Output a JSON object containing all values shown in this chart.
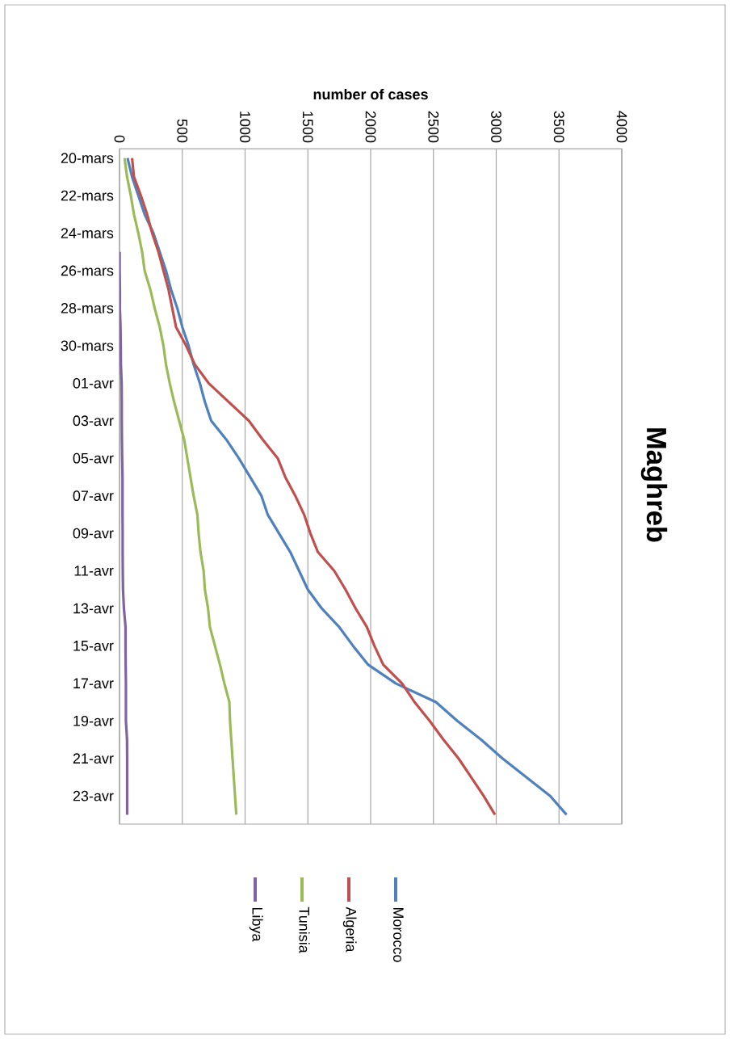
{
  "chart_data": {
    "type": "line",
    "title": "Maghreb",
    "xlabel": "number of cases",
    "orientation": "horizontal",
    "categories": [
      "20-mars",
      null,
      "22-mars",
      null,
      "24-mars",
      null,
      "26-mars",
      null,
      "28-mars",
      null,
      "30-mars",
      null,
      "01-avr",
      null,
      "03-avr",
      null,
      "05-avr",
      null,
      "07-avr",
      null,
      "09-avr",
      null,
      "11-avr",
      null,
      "13-avr",
      null,
      "15-avr",
      null,
      "17-avr",
      null,
      "19-avr",
      null,
      "21-avr",
      null,
      "23-avr",
      null
    ],
    "series": [
      {
        "name": "Morocco",
        "color": "#4f81bd",
        "values": [
          64,
          100,
          150,
          200,
          270,
          320,
          370,
          410,
          460,
          500,
          550,
          590,
          640,
          680,
          730,
          850,
          950,
          1040,
          1130,
          1180,
          1270,
          1360,
          1430,
          1500,
          1610,
          1750,
          1860,
          1980,
          2200,
          2520,
          2690,
          2880,
          3050,
          3240,
          3430,
          3560
        ]
      },
      {
        "name": "Algeria",
        "color": "#c0504d",
        "values": [
          100,
          115,
          170,
          220,
          260,
          310,
          350,
          390,
          420,
          450,
          530,
          600,
          710,
          870,
          1030,
          1140,
          1260,
          1320,
          1400,
          1470,
          1520,
          1580,
          1710,
          1800,
          1880,
          1970,
          2030,
          2100,
          2250,
          2350,
          2470,
          2580,
          2700,
          2800,
          2900,
          2990
        ]
      },
      {
        "name": "Tunisia",
        "color": "#9bbb59",
        "values": [
          40,
          60,
          90,
          115,
          150,
          180,
          200,
          245,
          280,
          320,
          350,
          370,
          400,
          435,
          475,
          515,
          540,
          565,
          590,
          620,
          630,
          645,
          670,
          680,
          705,
          720,
          760,
          800,
          835,
          875,
          880,
          890,
          900,
          910,
          920,
          930
        ]
      },
      {
        "name": "Libya",
        "color": "#8064a2",
        "values": [
          null,
          null,
          null,
          null,
          null,
          1,
          1,
          3,
          3,
          8,
          10,
          11,
          17,
          18,
          18,
          19,
          21,
          24,
          24,
          24,
          25,
          25,
          26,
          28,
          35,
          48,
          48,
          49,
          51,
          51,
          51,
          60,
          61,
          61,
          61,
          61
        ]
      }
    ],
    "xlim": [
      0,
      4000
    ],
    "xticks": [
      0,
      500,
      1000,
      1500,
      2000,
      2500,
      3000,
      3500,
      4000
    ],
    "grid": "x",
    "legend": "bottom"
  }
}
